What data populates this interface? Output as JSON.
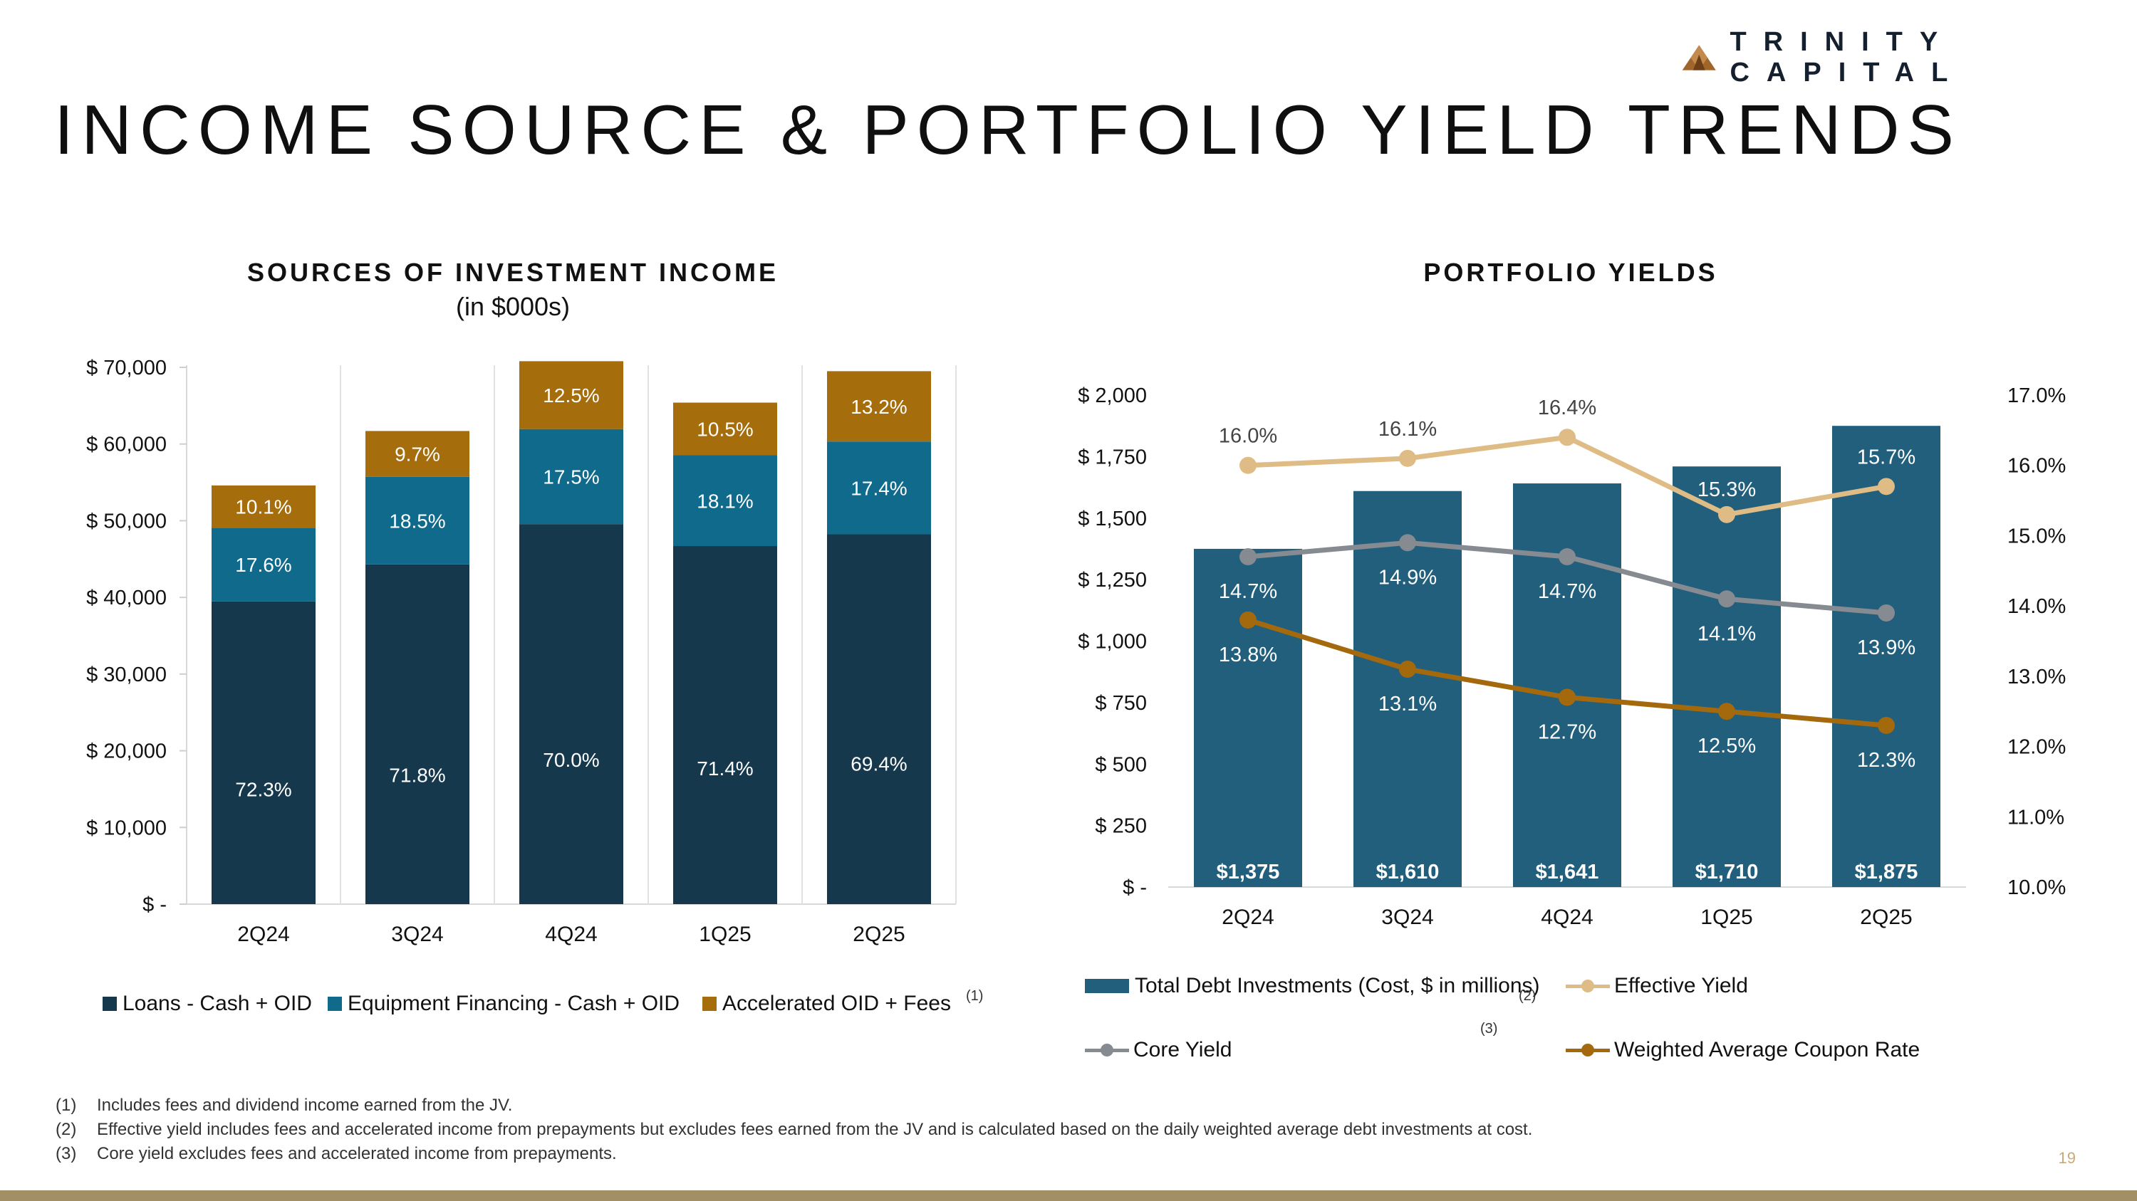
{
  "brand": {
    "logo_text": "TRINITY CAPITAL",
    "page_title": "INCOME SOURCE & PORTFOLIO YIELD TRENDS",
    "page_number": "19"
  },
  "colors": {
    "loans": "#15384d",
    "equipment": "#0f6a8c",
    "accelerated": "#a56d0b",
    "debt_bar": "#215f7d",
    "effective": "#dfbc85",
    "core": "#858b90",
    "coupon": "#a4690d",
    "bottom_bar": "#a38f66",
    "logo": "#a0652b"
  },
  "chart_data": [
    {
      "type": "bar",
      "stacked": true,
      "title": "SOURCES OF INVESTMENT INCOME",
      "subtitle": "(in $000s)",
      "categories": [
        "2Q24",
        "3Q24",
        "4Q24",
        "1Q25",
        "2Q25"
      ],
      "ylim": [
        0,
        70000
      ],
      "yticks": [
        0,
        10000,
        20000,
        30000,
        40000,
        50000,
        60000,
        70000
      ],
      "ytick_labels": [
        "$ -",
        "$ 10,000",
        "$ 20,000",
        "$ 30,000",
        "$ 40,000",
        "$ 50,000",
        "$ 60,000",
        "$ 70,000"
      ],
      "totals": [
        54600,
        61700,
        70800,
        65400,
        69500
      ],
      "series": [
        {
          "name": "Loans - Cash + OID",
          "key": "loans",
          "shares": [
            72.3,
            71.8,
            70.0,
            71.4,
            69.4
          ],
          "labels": [
            "72.3%",
            "71.8%",
            "70.0%",
            "71.4%",
            "69.4%"
          ]
        },
        {
          "name": "Equipment Financing - Cash + OID",
          "key": "equipment",
          "shares": [
            17.6,
            18.5,
            17.5,
            18.1,
            17.4
          ],
          "labels": [
            "17.6%",
            "18.5%",
            "17.5%",
            "18.1%",
            "17.4%"
          ]
        },
        {
          "name": "Accelerated OID + Fees",
          "key": "accelerated",
          "shares": [
            10.1,
            9.7,
            12.5,
            10.5,
            13.2
          ],
          "labels": [
            "10.1%",
            "9.7%",
            "12.5%",
            "10.5%",
            "13.2%"
          ]
        }
      ],
      "legend": {
        "loans": "Loans - Cash + OID",
        "equipment": "Equipment Financing - Cash + OID",
        "accelerated": "Accelerated OID + Fees",
        "accelerated_note": "(1)"
      }
    },
    {
      "type": "bar+line",
      "title": "PORTFOLIO YIELDS",
      "categories": [
        "2Q24",
        "3Q24",
        "4Q24",
        "1Q25",
        "2Q25"
      ],
      "left_axis": {
        "ylim": [
          0,
          2000
        ],
        "ticks": [
          0,
          250,
          500,
          750,
          1000,
          1250,
          1500,
          1750,
          2000
        ],
        "tick_labels": [
          "$ -",
          "$ 250",
          "$ 500",
          "$ 750",
          "$ 1,000",
          "$ 1,250",
          "$ 1,500",
          "$ 1,750",
          "$ 2,000"
        ]
      },
      "right_axis": {
        "ylim": [
          10.0,
          17.0
        ],
        "ticks": [
          10,
          11,
          12,
          13,
          14,
          15,
          16,
          17
        ],
        "tick_labels": [
          "10.0%",
          "11.0%",
          "12.0%",
          "13.0%",
          "14.0%",
          "15.0%",
          "16.0%",
          "17.0%"
        ]
      },
      "bars": {
        "name": "Total Debt Investments (Cost, $ in millions)",
        "values": [
          1375,
          1610,
          1641,
          1710,
          1875
        ],
        "labels": [
          "$1,375",
          "$1,610",
          "$1,641",
          "$1,710",
          "$1,875"
        ]
      },
      "lines": [
        {
          "name": "Effective Yield",
          "key": "effective",
          "note": "(2)",
          "values": [
            16.0,
            16.1,
            16.4,
            15.3,
            15.7
          ],
          "labels": [
            "16.0%",
            "16.1%",
            "16.4%",
            "15.3%",
            "15.7%"
          ]
        },
        {
          "name": "Core Yield",
          "key": "core",
          "note": "(3)",
          "values": [
            14.7,
            14.9,
            14.7,
            14.1,
            13.9
          ],
          "labels": [
            "14.7%",
            "14.9%",
            "14.7%",
            "14.1%",
            "13.9%"
          ]
        },
        {
          "name": "Weighted Average Coupon Rate",
          "key": "coupon",
          "note": "",
          "values": [
            13.8,
            13.1,
            12.7,
            12.5,
            12.3
          ],
          "labels": [
            "13.8%",
            "13.1%",
            "12.7%",
            "12.5%",
            "12.3%"
          ]
        }
      ],
      "legend": {
        "bars": "Total Debt Investments (Cost, $ in millions)",
        "effective": "Effective Yield",
        "core": "Core Yield",
        "coupon": "Weighted Average Coupon Rate",
        "note2": "(2)",
        "note3": "(3)"
      }
    }
  ],
  "footnotes": [
    {
      "num": "(1)",
      "text": "Includes fees and dividend income earned from the JV."
    },
    {
      "num": "(2)",
      "text": "Effective yield includes fees and accelerated income from prepayments but excludes fees earned from the JV and is calculated based on the daily weighted average debt investments at cost."
    },
    {
      "num": "(3)",
      "text": "Core yield excludes fees and accelerated income from prepayments."
    }
  ]
}
